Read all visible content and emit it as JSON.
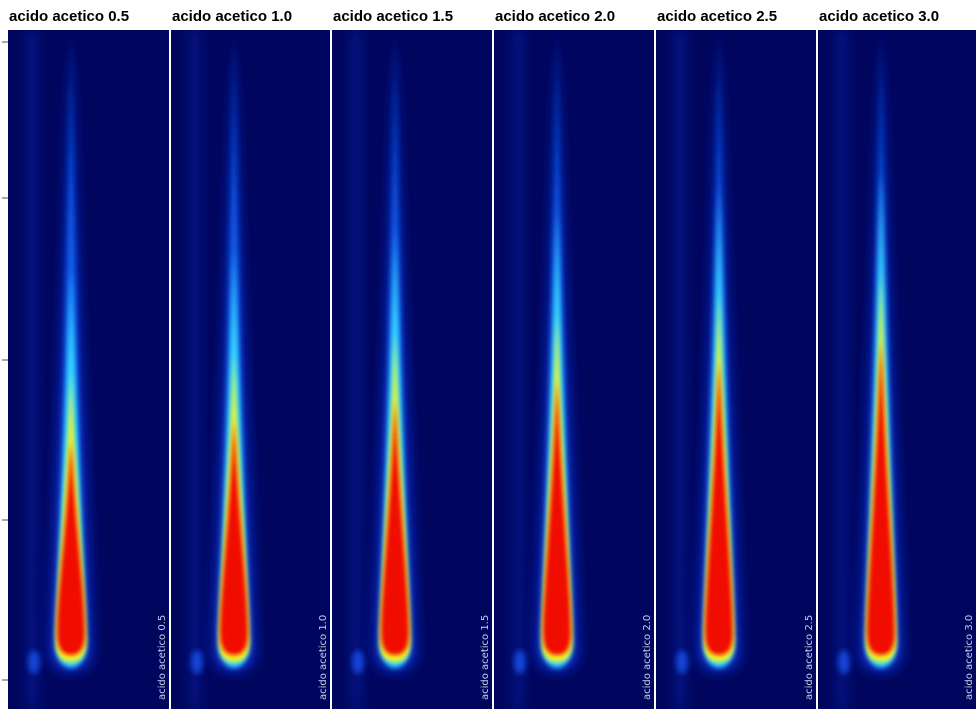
{
  "panels": [
    {
      "title": "acido acetico 0.5",
      "side_label": "acido acetico 0.5"
    },
    {
      "title": "acido acetico 1.0",
      "side_label": "acido acetico 1.0"
    },
    {
      "title": "acido acetico 1.5",
      "side_label": "acido acetico 1.5"
    },
    {
      "title": "acido acetico 2.0",
      "side_label": "acido acetico 2.0"
    },
    {
      "title": "acido acetico 2.5",
      "side_label": "acido acetico 2.5"
    },
    {
      "title": "acido acetico 3.0",
      "side_label": "acido acetico 3.0"
    }
  ]
}
